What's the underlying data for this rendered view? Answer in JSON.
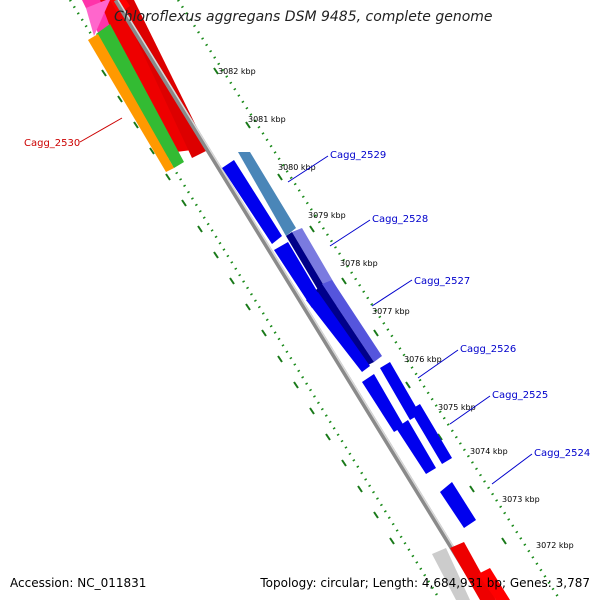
{
  "title": "Chloroflexus aggregans DSM 9485, complete genome",
  "footer": {
    "accession": "Accession: NC_011831",
    "summary": "Topology: circular; Length: 4,684,931 bp; Genes: 3,787"
  },
  "kbp_ticks": [
    "3082 kbp",
    "3081 kbp",
    "3080 kbp",
    "3079 kbp",
    "3078 kbp",
    "3077 kbp",
    "3076 kbp",
    "3075 kbp",
    "3074 kbp",
    "3073 kbp",
    "3072 kbp"
  ],
  "gene_labels": [
    {
      "text": "Cagg_2530",
      "color": "#cc0000"
    },
    {
      "text": "Cagg_2529",
      "color": "#0000cc"
    },
    {
      "text": "Cagg_2528",
      "color": "#0000cc"
    },
    {
      "text": "Cagg_2527",
      "color": "#0000cc"
    },
    {
      "text": "Cagg_2526",
      "color": "#0000cc"
    },
    {
      "text": "Cagg_2525",
      "color": "#0000cc"
    },
    {
      "text": "Cagg_2524",
      "color": "#0000cc"
    }
  ],
  "colors": {
    "backbone": "#8a8a8a",
    "cds_forward": "#ee0000",
    "cds_reverse": "#0000ee",
    "tick": "#1a7a1a"
  }
}
